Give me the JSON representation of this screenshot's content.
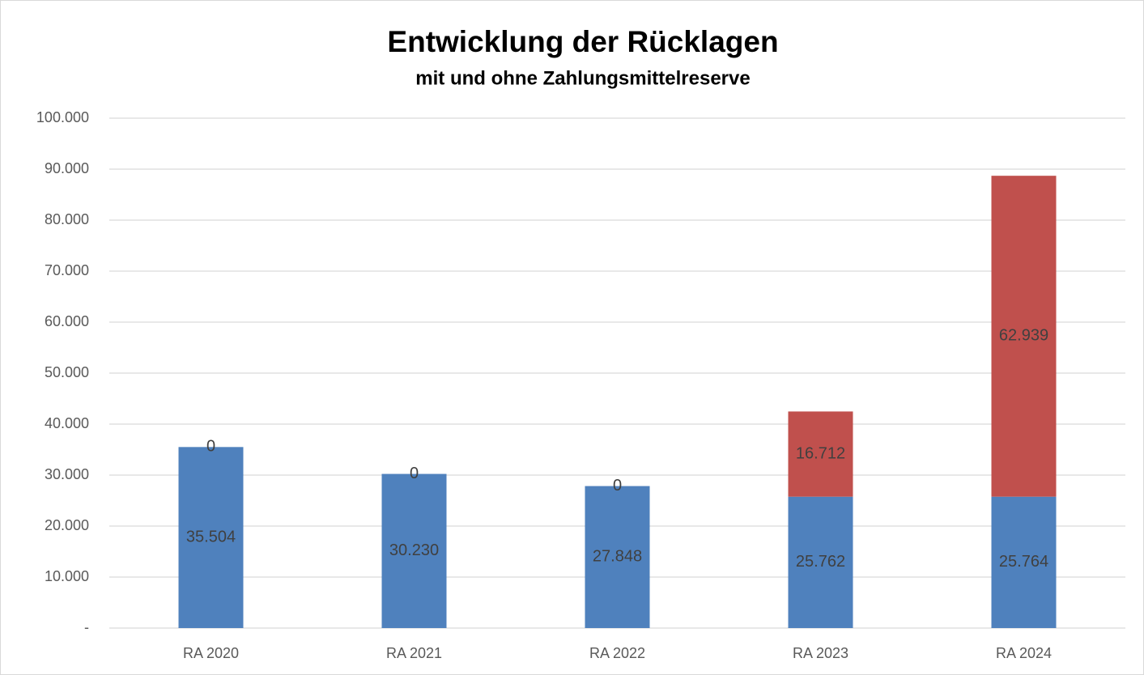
{
  "chart_data": {
    "type": "bar",
    "stacked": true,
    "title": "Entwicklung der Rücklagen",
    "subtitle": "mit und ohne Zahlungsmittelreserve",
    "categories": [
      "RA 2020",
      "RA 2021",
      "RA 2022",
      "RA 2023",
      "RA 2024"
    ],
    "series": [
      {
        "color": "#4f81bd",
        "values": [
          35504,
          30230,
          27848,
          25762,
          25764
        ],
        "value_labels": [
          "35.504",
          "30.230",
          "27.848",
          "25.762",
          "25.764"
        ]
      },
      {
        "color": "#c0504d",
        "values": [
          0,
          0,
          0,
          16712,
          62939
        ],
        "value_labels": [
          "0",
          "0",
          "0",
          "16.712",
          "62.939"
        ]
      }
    ],
    "ylim": [
      0,
      100000
    ],
    "yticks": [
      {
        "value": 0,
        "label": "-"
      },
      {
        "value": 10000,
        "label": "10.000"
      },
      {
        "value": 20000,
        "label": "20.000"
      },
      {
        "value": 30000,
        "label": "30.000"
      },
      {
        "value": 40000,
        "label": "40.000"
      },
      {
        "value": 50000,
        "label": "50.000"
      },
      {
        "value": 60000,
        "label": "60.000"
      },
      {
        "value": 70000,
        "label": "70.000"
      },
      {
        "value": 80000,
        "label": "80.000"
      },
      {
        "value": 90000,
        "label": "90.000"
      },
      {
        "value": 100000,
        "label": "100.000"
      }
    ],
    "grid": true
  }
}
